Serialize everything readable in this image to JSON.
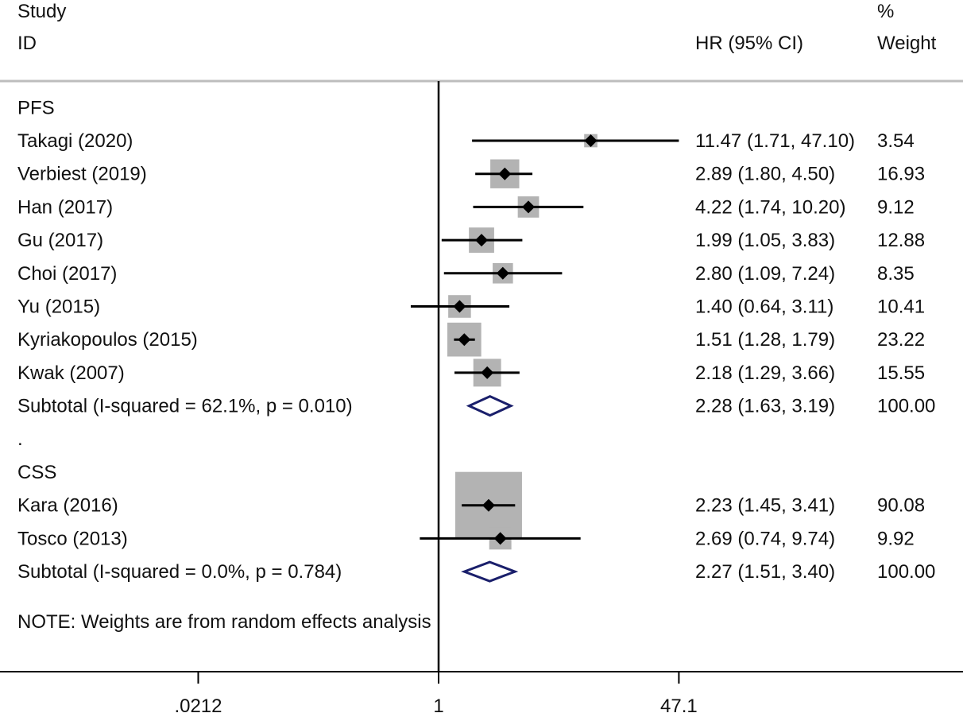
{
  "chart_data": {
    "type": "forest",
    "scale": "log",
    "header": {
      "study_line1": "Study",
      "study_line2": "ID",
      "hr": "HR (95% CI)",
      "weight_line1": "%",
      "weight_line2": "Weight"
    },
    "xticks": [
      {
        "value": 0.0212,
        "label": ".0212"
      },
      {
        "value": 1,
        "label": "1"
      },
      {
        "value": 47.1,
        "label": "47.1"
      }
    ],
    "null_value": 1,
    "subgroups": [
      {
        "name": "PFS",
        "studies": [
          {
            "label": "Takagi (2020)",
            "hr": 11.47,
            "lo": 1.71,
            "hi": 47.1,
            "ci_text": "11.47 (1.71, 47.10)",
            "weight": "3.54"
          },
          {
            "label": "Verbiest (2019)",
            "hr": 2.89,
            "lo": 1.8,
            "hi": 4.5,
            "ci_text": "2.89 (1.80, 4.50)",
            "weight": "16.93"
          },
          {
            "label": "Han (2017)",
            "hr": 4.22,
            "lo": 1.74,
            "hi": 10.2,
            "ci_text": "4.22 (1.74, 10.20)",
            "weight": "9.12"
          },
          {
            "label": "Gu (2017)",
            "hr": 1.99,
            "lo": 1.05,
            "hi": 3.83,
            "ci_text": "1.99 (1.05, 3.83)",
            "weight": "12.88"
          },
          {
            "label": "Choi (2017)",
            "hr": 2.8,
            "lo": 1.09,
            "hi": 7.24,
            "ci_text": "2.80 (1.09, 7.24)",
            "weight": "8.35"
          },
          {
            "label": "Yu (2015)",
            "hr": 1.4,
            "lo": 0.64,
            "hi": 3.11,
            "ci_text": "1.40 (0.64, 3.11)",
            "weight": "10.41"
          },
          {
            "label": "Kyriakopoulos (2015)",
            "hr": 1.51,
            "lo": 1.28,
            "hi": 1.79,
            "ci_text": "1.51 (1.28, 1.79)",
            "weight": "23.22"
          },
          {
            "label": "Kwak (2007)",
            "hr": 2.18,
            "lo": 1.29,
            "hi": 3.66,
            "ci_text": "2.18 (1.29, 3.66)",
            "weight": "15.55"
          }
        ],
        "subtotal": {
          "label": "Subtotal  (I-squared = 62.1%, p = 0.010)",
          "hr": 2.28,
          "lo": 1.63,
          "hi": 3.19,
          "ci_text": "2.28 (1.63, 3.19)",
          "weight": "100.00"
        }
      },
      {
        "name": "CSS",
        "studies": [
          {
            "label": "Kara (2016)",
            "hr": 2.23,
            "lo": 1.45,
            "hi": 3.41,
            "ci_text": "2.23 (1.45, 3.41)",
            "weight": "90.08"
          },
          {
            "label": "Tosco (2013)",
            "hr": 2.69,
            "lo": 0.74,
            "hi": 9.74,
            "ci_text": "2.69 (0.74, 9.74)",
            "weight": "9.92"
          }
        ],
        "subtotal": {
          "label": "Subtotal  (I-squared = 0.0%, p = 0.784)",
          "hr": 2.27,
          "lo": 1.51,
          "hi": 3.4,
          "ci_text": "2.27 (1.51, 3.40)",
          "weight": "100.00"
        }
      }
    ],
    "separator": ".",
    "note": "NOTE: Weights are from random effects analysis",
    "colors": {
      "text": "#111111",
      "box": "#b3b3b3",
      "line": "#000000",
      "diamond": "#1a1f6b",
      "rule": "#bdbdbd"
    }
  }
}
